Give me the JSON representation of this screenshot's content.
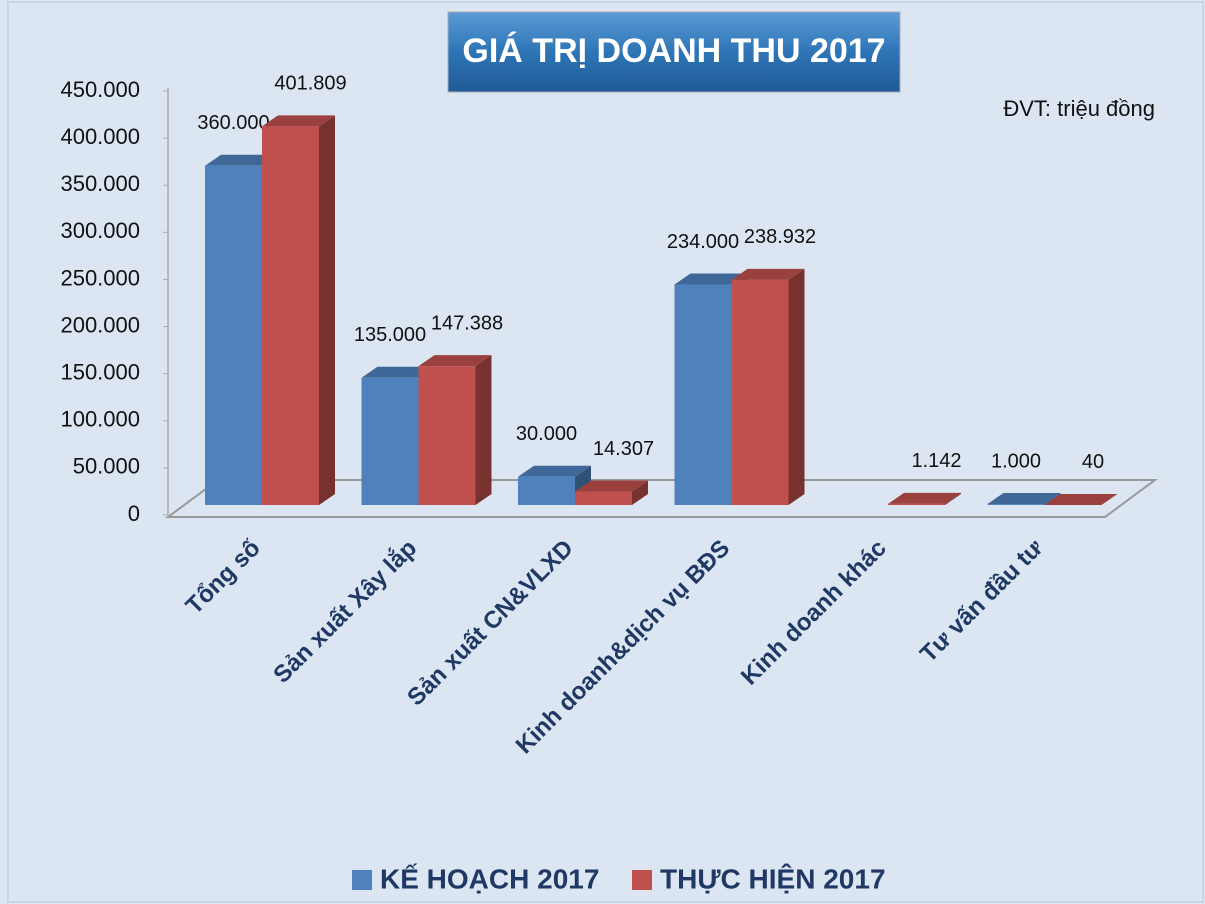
{
  "chart_data": {
    "type": "bar3d",
    "title": "GIÁ TRỊ DOANH THU 2017",
    "unit_note": "ĐVT: triệu đồng",
    "categories": [
      "Tổng số",
      "Sản xuất Xây lắp",
      "Sản xuất CN&VLXD",
      "Kinh doanh&dịch vụ BĐS",
      "Kinh doanh khác",
      "Tư vấn đầu tư"
    ],
    "series": [
      {
        "name": "KẾ HOẠCH 2017",
        "color": "#4f81bd",
        "values": [
          360000,
          135000,
          30000,
          234000,
          null,
          1000
        ],
        "value_labels": [
          "360.000",
          "135.000",
          "30.000",
          "234.000",
          null,
          "1.000"
        ]
      },
      {
        "name": "THỰC HIỆN 2017",
        "color": "#c0504d",
        "values": [
          401809,
          147388,
          14307,
          238932,
          1142,
          40
        ],
        "value_labels": [
          "401.809",
          "147.388",
          "14.307",
          "238.932",
          "1.142",
          "40"
        ]
      }
    ],
    "ylim": [
      0,
      450000
    ],
    "yticks": [
      0,
      {
        "value": 50000,
        "label": "50.000"
      },
      {
        "value": 100000,
        "label": "100.000"
      },
      {
        "value": 150000,
        "label": "150.000"
      },
      {
        "value": 200000,
        "label": "200.000"
      },
      {
        "value": 250000,
        "label": "250.000"
      },
      {
        "value": 300000,
        "label": "300.000"
      },
      {
        "value": 350000,
        "label": "350.000"
      },
      {
        "value": 400000,
        "label": "400.000"
      },
      {
        "value": 450000,
        "label": "450.000"
      }
    ],
    "legend": "bottom"
  }
}
